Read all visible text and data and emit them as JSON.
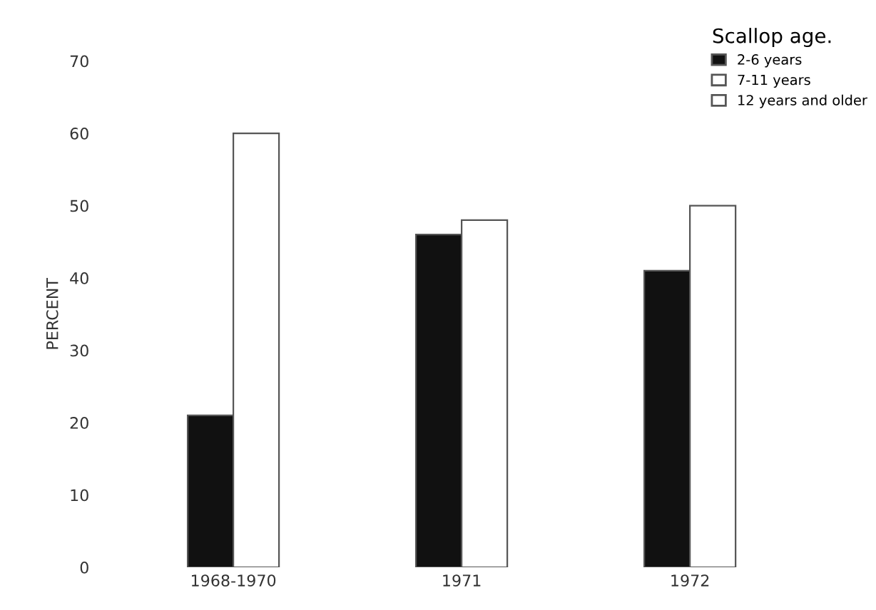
{
  "chart_data": {
    "type": "bar",
    "ylabel": "PERCENT",
    "legend_title": "Scallop age.",
    "categories": [
      "1968-1970",
      "1971",
      "1972"
    ],
    "series": [
      {
        "name": "2-6 years",
        "color": "#111111",
        "values": [
          21,
          46,
          41
        ]
      },
      {
        "name": "7-11 years",
        "color": "#ffffff",
        "values": [
          60,
          48,
          50
        ]
      },
      {
        "name": "12 years and older",
        "color": "#ffffff",
        "values": [
          0,
          0,
          0
        ]
      }
    ],
    "ylim": [
      0,
      70
    ],
    "yticks": [
      0,
      10,
      20,
      30,
      40,
      50,
      60,
      70
    ],
    "grid": false,
    "legend": "top right"
  }
}
